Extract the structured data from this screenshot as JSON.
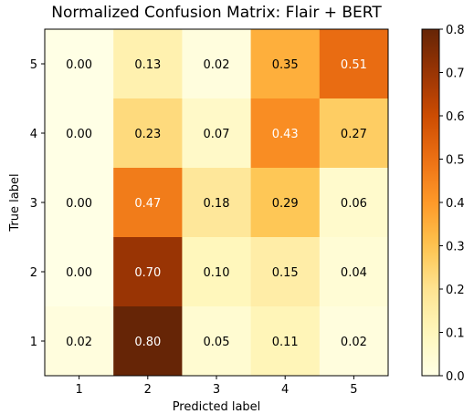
{
  "chart_data": {
    "type": "heatmap",
    "title": "Normalized Confusion Matrix: Flair + BERT",
    "xlabel": "Predicted label",
    "ylabel": "True label",
    "x_categories": [
      "1",
      "2",
      "3",
      "4",
      "5"
    ],
    "y_categories": [
      "5",
      "4",
      "3",
      "2",
      "1"
    ],
    "values": [
      [
        0.0,
        0.13,
        0.02,
        0.35,
        0.51
      ],
      [
        0.0,
        0.23,
        0.07,
        0.43,
        0.27
      ],
      [
        0.0,
        0.47,
        0.18,
        0.29,
        0.06
      ],
      [
        0.0,
        0.7,
        0.1,
        0.15,
        0.04
      ],
      [
        0.02,
        0.8,
        0.05,
        0.11,
        0.02
      ]
    ],
    "value_format": "0.00",
    "colormap": "YlOrBr",
    "colorbar": {
      "vmin": 0.0,
      "vmax": 0.8,
      "ticks": [
        0.0,
        0.1,
        0.2,
        0.3,
        0.4,
        0.5,
        0.6,
        0.7,
        0.8
      ],
      "tick_labels": [
        "0.0",
        "0.1",
        "0.2",
        "0.3",
        "0.4",
        "0.5",
        "0.6",
        "0.7",
        "0.8"
      ]
    },
    "grid": false,
    "legend": "colorbar-right"
  }
}
